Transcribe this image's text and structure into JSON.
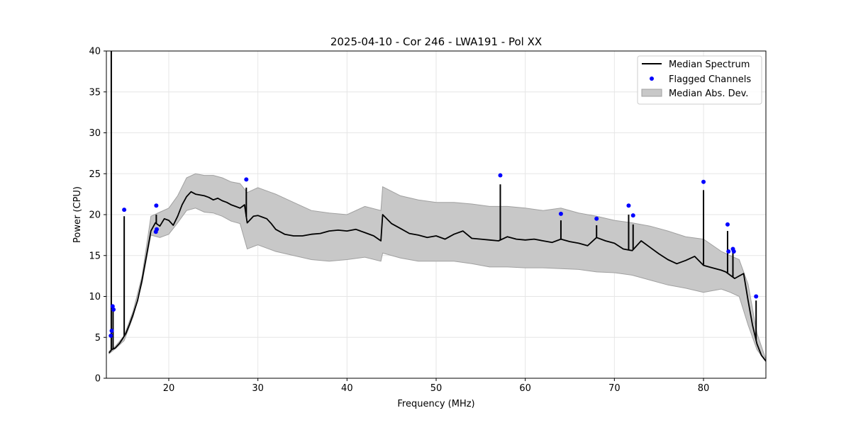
{
  "chart_data": {
    "type": "line",
    "title": "2025-04-10 - Cor 246 - LWA191 - Pol XX",
    "xlabel": "Frequency (MHz)",
    "ylabel": "Power (CPU)",
    "xlim": [
      13,
      87
    ],
    "ylim": [
      0,
      40
    ],
    "xticks": [
      20,
      30,
      40,
      50,
      60,
      70,
      80
    ],
    "yticks": [
      0,
      5,
      10,
      15,
      20,
      25,
      30,
      35,
      40
    ],
    "grid": true,
    "legend_position": "top-right",
    "legend": {
      "median": "Median Spectrum",
      "flagged": "Flagged Channels",
      "mad": "Median Abs. Dev."
    },
    "colors": {
      "median": "#000000",
      "flagged": "#0000ff",
      "mad": "#c8c8c8",
      "mad_edge": "#a0a0a0"
    },
    "median_spectrum": {
      "x": [
        13.3,
        13.6,
        14.0,
        14.5,
        14.8,
        15.2,
        15.6,
        16.0,
        16.5,
        17.0,
        17.5,
        18.0,
        18.5,
        19.0,
        19.5,
        20.0,
        20.5,
        21.0,
        21.5,
        22.0,
        22.5,
        23.0,
        23.5,
        24.0,
        24.5,
        25.0,
        25.5,
        26.0,
        26.5,
        27.0,
        27.5,
        28.0,
        28.5,
        28.8,
        29.5,
        30.0,
        30.5,
        31.0,
        31.5,
        32.0,
        33.0,
        34.0,
        35.0,
        36.0,
        37.0,
        38.0,
        39.0,
        40.0,
        41.0,
        42.0,
        43.0,
        43.8,
        44.0,
        45.0,
        46.0,
        47.0,
        48.0,
        49.0,
        50.0,
        51.0,
        52.0,
        53.0,
        54.0,
        55.0,
        56.0,
        57.0,
        58.0,
        59.0,
        60.0,
        61.0,
        62.0,
        63.0,
        64.0,
        65.0,
        66.0,
        67.0,
        68.0,
        69.0,
        70.0,
        71.0,
        72.0,
        73.0,
        74.0,
        75.0,
        76.0,
        77.0,
        78.0,
        79.0,
        80.0,
        81.0,
        82.0,
        82.5,
        83.0,
        83.5,
        84.0,
        84.5,
        85.0,
        85.5,
        86.0,
        86.5,
        87.0
      ],
      "y": [
        3.1,
        3.5,
        3.7,
        4.3,
        4.8,
        5.5,
        6.6,
        7.8,
        9.5,
        12.0,
        15.0,
        18.0,
        19.0,
        18.6,
        19.5,
        19.3,
        18.7,
        19.8,
        21.2,
        22.2,
        22.8,
        22.5,
        22.4,
        22.3,
        22.1,
        21.8,
        22.0,
        21.7,
        21.5,
        21.2,
        21.0,
        20.8,
        21.2,
        19.0,
        19.8,
        19.9,
        19.7,
        19.5,
        18.9,
        18.2,
        17.6,
        17.4,
        17.4,
        17.6,
        17.7,
        18.0,
        18.1,
        18.0,
        18.2,
        17.8,
        17.4,
        16.8,
        20.0,
        18.9,
        18.3,
        17.7,
        17.5,
        17.2,
        17.4,
        17.0,
        17.6,
        18.0,
        17.1,
        17.0,
        16.9,
        16.8,
        17.3,
        17.0,
        16.9,
        17.0,
        16.8,
        16.6,
        17.0,
        16.7,
        16.5,
        16.2,
        17.2,
        16.8,
        16.5,
        15.8,
        15.6,
        16.8,
        16.0,
        15.2,
        14.5,
        14.0,
        14.4,
        14.9,
        13.8,
        13.5,
        13.2,
        13.0,
        12.6,
        12.2,
        12.5,
        12.8,
        9.5,
        6.5,
        4.2,
        2.8,
        2.1
      ]
    },
    "mad_band": {
      "x": [
        13.3,
        14.0,
        15.0,
        16.0,
        17.0,
        18.0,
        19.0,
        20.0,
        21.0,
        22.0,
        23.0,
        24.0,
        25.0,
        26.0,
        27.0,
        28.0,
        28.8,
        30.0,
        32.0,
        34.0,
        36.0,
        38.0,
        40.0,
        42.0,
        43.8,
        44.0,
        46.0,
        48.0,
        50.0,
        52.0,
        54.0,
        56.0,
        58.0,
        60.0,
        62.0,
        64.0,
        66.0,
        68.0,
        70.0,
        72.0,
        74.0,
        76.0,
        78.0,
        80.0,
        82.0,
        83.0,
        84.0,
        85.0,
        86.0,
        87.0
      ],
      "lower": [
        3.0,
        3.6,
        4.6,
        7.5,
        11.6,
        17.5,
        17.2,
        17.6,
        19.0,
        20.5,
        20.8,
        20.3,
        20.2,
        19.8,
        19.2,
        18.9,
        15.8,
        16.3,
        15.5,
        15.0,
        14.5,
        14.3,
        14.5,
        14.8,
        14.3,
        15.3,
        14.7,
        14.3,
        14.3,
        14.3,
        14.0,
        13.6,
        13.6,
        13.5,
        13.5,
        13.4,
        13.3,
        13.0,
        12.9,
        12.6,
        12.0,
        11.4,
        11.0,
        10.5,
        10.9,
        10.5,
        10.0,
        6.5,
        3.5,
        2.0
      ],
      "upper": [
        3.3,
        3.9,
        5.2,
        8.2,
        12.5,
        19.8,
        20.3,
        20.8,
        22.3,
        24.5,
        25.0,
        24.8,
        24.8,
        24.5,
        24.0,
        23.8,
        22.7,
        23.3,
        22.5,
        21.5,
        20.5,
        20.2,
        20.0,
        21.0,
        20.5,
        23.4,
        22.3,
        21.8,
        21.5,
        21.5,
        21.3,
        21.0,
        21.0,
        20.8,
        20.5,
        20.8,
        20.2,
        19.8,
        19.3,
        19.0,
        18.6,
        18.0,
        17.3,
        17.0,
        15.5,
        15.0,
        14.5,
        11.5,
        5.5,
        2.3
      ]
    },
    "spikes": [
      {
        "x": 13.55,
        "y": 40.0
      },
      {
        "x": 13.75,
        "y": 8.8
      },
      {
        "x": 15.0,
        "y": 19.8
      },
      {
        "x": 18.6,
        "y": 20.0
      },
      {
        "x": 28.7,
        "y": 23.3
      },
      {
        "x": 57.2,
        "y": 23.7
      },
      {
        "x": 64.0,
        "y": 19.3
      },
      {
        "x": 68.0,
        "y": 18.7
      },
      {
        "x": 71.6,
        "y": 20.0
      },
      {
        "x": 72.1,
        "y": 18.8
      },
      {
        "x": 80.0,
        "y": 23.0
      },
      {
        "x": 82.7,
        "y": 18.0
      },
      {
        "x": 83.3,
        "y": 15.8
      },
      {
        "x": 85.9,
        "y": 9.5
      }
    ],
    "flagged_channels": {
      "x": [
        13.5,
        13.6,
        13.7,
        13.8,
        15.0,
        18.6,
        18.55,
        18.65,
        28.7,
        57.2,
        64.0,
        68.0,
        71.6,
        72.1,
        80.0,
        82.7,
        82.8,
        83.3,
        83.4,
        85.9
      ],
      "y": [
        5.2,
        5.8,
        8.8,
        8.4,
        20.6,
        21.1,
        17.9,
        18.2,
        24.3,
        24.8,
        20.1,
        19.5,
        21.1,
        19.9,
        24.0,
        18.8,
        15.5,
        15.8,
        15.5,
        10.0
      ]
    }
  }
}
